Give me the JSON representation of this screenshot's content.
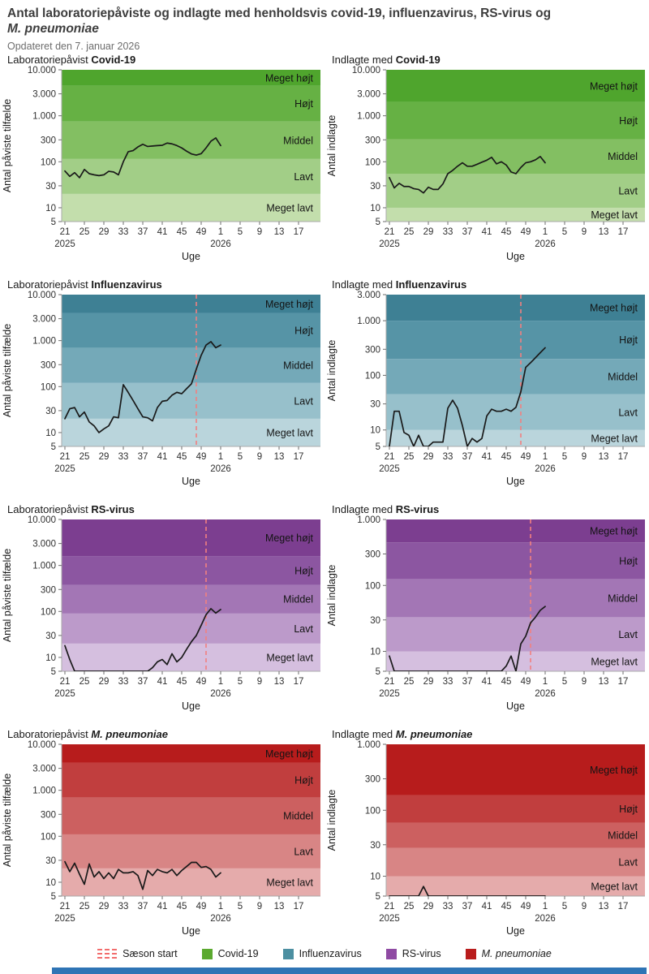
{
  "page": {
    "title_main": "Antal laboratoriepåviste og indlagte med henholdsvis covid-19, influenzavirus, RS-virus og",
    "title_italic": "M. pneumoniae",
    "subtitle": "Opdateret den 7. januar 2026"
  },
  "colors": {
    "line": "#1a1a1a",
    "season_dash": "#F28080",
    "axis": "#ababab",
    "footer_bar": "#2E74B5",
    "palettes": {
      "green": [
        "#4FA52D",
        "#66B144",
        "#83BF62",
        "#A2CE87",
        "#C3DEAC"
      ],
      "teal": [
        "#3E8094",
        "#5694A6",
        "#74A9B8",
        "#97C0CB",
        "#BAD5DC"
      ],
      "purple": [
        "#7C3E90",
        "#8C56A1",
        "#A376B5",
        "#BC9ACA",
        "#D5BFDF"
      ],
      "red": [
        "#B71C1C",
        "#C13E3E",
        "#CC6060",
        "#D88585",
        "#E5ABAB"
      ]
    }
  },
  "levels_top_to_bottom": [
    "Meget højt",
    "Højt",
    "Middel",
    "Lavt",
    "Meget lavt"
  ],
  "x_axis": {
    "label": "Uge",
    "weeks": [
      21,
      22,
      23,
      24,
      25,
      26,
      27,
      28,
      29,
      30,
      31,
      32,
      33,
      34,
      35,
      36,
      37,
      38,
      39,
      40,
      41,
      42,
      43,
      44,
      45,
      46,
      47,
      48,
      49,
      50,
      51,
      52,
      1
    ],
    "tick_weeks": [
      21,
      25,
      29,
      33,
      37,
      41,
      45,
      49,
      1,
      5,
      9,
      13,
      17
    ],
    "year_labels": [
      {
        "week": 21,
        "text": "2025"
      },
      {
        "week": 1,
        "text": "2026"
      }
    ]
  },
  "legend": {
    "season": {
      "label": "Sæson start",
      "color": "#F26D6D"
    },
    "items": [
      {
        "label": "Covid-19",
        "color": "#5BA92F",
        "italic": false
      },
      {
        "label": "Influenzavirus",
        "color": "#4C8FA1",
        "italic": false
      },
      {
        "label": "RS-virus",
        "color": "#8F4AA3",
        "italic": false
      },
      {
        "label": "M. pneumoniae",
        "color": "#B91C1C",
        "italic": true
      }
    ]
  },
  "chart_data": {
    "type": "line",
    "note": "8 log-scale weekly surveillance charts; values under charts[].values; background intensity bands between thresholds"
  },
  "charts": [
    {
      "title_prefix": "Laboratoriepåvist ",
      "title_pathogen": "Covid-19",
      "title_italic": false,
      "ylabel": "Antal påviste tilfælde",
      "palette": "green",
      "ymin": 5,
      "ymax": 10000,
      "y_tick_values": [
        10000,
        3000,
        1000,
        300,
        100,
        30,
        10,
        5
      ],
      "y_tick_labels": [
        "10.000",
        "3.000",
        "1.000",
        "300",
        "100",
        "30",
        "10",
        "5"
      ],
      "thresholds": [
        20,
        115,
        750,
        4500
      ],
      "season_start_week": null,
      "values": [
        63,
        48,
        58,
        45,
        68,
        55,
        52,
        50,
        52,
        62,
        60,
        52,
        100,
        165,
        175,
        210,
        240,
        215,
        220,
        225,
        228,
        255,
        245,
        225,
        200,
        170,
        148,
        140,
        150,
        200,
        280,
        330,
        225
      ]
    },
    {
      "title_prefix": "Indlagte med ",
      "title_pathogen": "Covid-19",
      "title_italic": false,
      "ylabel": "Antal indlagte",
      "palette": "green",
      "ymin": 5,
      "ymax": 10000,
      "y_tick_values": [
        10000,
        3000,
        1000,
        300,
        100,
        30,
        10,
        5
      ],
      "y_tick_labels": [
        "10.000",
        "3.000",
        "1.000",
        "300",
        "100",
        "30",
        "10",
        "5"
      ],
      "thresholds": [
        10,
        55,
        310,
        2000
      ],
      "season_start_week": null,
      "values": [
        45,
        27,
        34,
        29,
        29,
        26,
        25,
        21,
        28,
        25,
        25,
        33,
        55,
        65,
        80,
        95,
        80,
        80,
        88,
        98,
        108,
        125,
        90,
        100,
        85,
        60,
        55,
        75,
        95,
        100,
        110,
        130,
        95
      ]
    },
    {
      "title_prefix": "Laboratoriepåvist ",
      "title_pathogen": "Influenzavirus",
      "title_italic": false,
      "ylabel": "Antal påviste tilfælde",
      "palette": "teal",
      "ymin": 5,
      "ymax": 10000,
      "y_tick_values": [
        10000,
        3000,
        1000,
        300,
        100,
        30,
        10,
        5
      ],
      "y_tick_labels": [
        "10.000",
        "3.000",
        "1.000",
        "300",
        "100",
        "30",
        "10",
        "5"
      ],
      "thresholds": [
        20,
        120,
        700,
        4000
      ],
      "season_start_week": 48,
      "values": [
        20,
        33,
        35,
        22,
        28,
        17,
        14,
        10,
        12,
        14,
        22,
        21,
        110,
        75,
        50,
        33,
        22,
        21,
        18,
        35,
        48,
        50,
        65,
        75,
        70,
        90,
        115,
        240,
        480,
        800,
        950,
        700,
        800
      ]
    },
    {
      "title_prefix": "Indlagte med ",
      "title_pathogen": "Influenzavirus",
      "title_italic": false,
      "ylabel": "Antal indlagte",
      "palette": "teal",
      "ymin": 5,
      "ymax": 3000,
      "y_tick_values": [
        3000,
        1000,
        300,
        100,
        30,
        10,
        5
      ],
      "y_tick_labels": [
        "3.000",
        "1.000",
        "300",
        "100",
        "30",
        "10",
        "5"
      ],
      "thresholds": [
        10,
        45,
        200,
        1000
      ],
      "season_start_week": 48,
      "values": [
        5,
        22,
        22,
        9,
        8,
        5,
        8,
        5,
        5,
        6,
        6,
        6,
        25,
        35,
        25,
        12,
        5,
        7,
        6,
        7,
        18,
        24,
        22,
        22,
        24,
        22,
        26,
        50,
        140,
        170,
        210,
        260,
        320
      ]
    },
    {
      "title_prefix": "Laboratoriepåvist ",
      "title_pathogen": "RS-virus",
      "title_italic": false,
      "ylabel": "Antal påviste tilfælde",
      "palette": "purple",
      "ymin": 5,
      "ymax": 10000,
      "y_tick_values": [
        10000,
        3000,
        1000,
        300,
        100,
        30,
        10,
        5
      ],
      "y_tick_labels": [
        "10.000",
        "3.000",
        "1.000",
        "300",
        "100",
        "30",
        "10",
        "5"
      ],
      "thresholds": [
        20,
        90,
        380,
        1600
      ],
      "season_start_week": 50,
      "values": [
        18,
        9,
        5,
        5,
        5,
        5,
        5,
        5,
        5,
        5,
        5,
        5,
        5,
        5,
        5,
        5,
        5,
        5,
        6,
        8,
        9,
        7,
        12,
        8,
        10,
        15,
        22,
        30,
        50,
        85,
        115,
        92,
        110
      ]
    },
    {
      "title_prefix": "Indlagte med ",
      "title_pathogen": "RS-virus",
      "title_italic": false,
      "ylabel": "Antal indlagte",
      "palette": "purple",
      "ymin": 5,
      "ymax": 1000,
      "y_tick_values": [
        1000,
        300,
        100,
        30,
        10,
        5
      ],
      "y_tick_labels": [
        "1.000",
        "300",
        "100",
        "30",
        "10",
        "5"
      ],
      "thresholds": [
        10,
        33,
        125,
        450
      ],
      "season_start_week": 50,
      "values": [
        8.5,
        5,
        5,
        5,
        5,
        5,
        5,
        5,
        5,
        5,
        5,
        5,
        5,
        5,
        5,
        5,
        5,
        5,
        5,
        5,
        5,
        5,
        5,
        5,
        6,
        8.5,
        5,
        13,
        17,
        27,
        33,
        42,
        48
      ]
    },
    {
      "title_prefix": "Laboratoriepåvist ",
      "title_pathogen": "M. pneumoniae",
      "title_italic": true,
      "ylabel": "Antal påviste tilfælde",
      "palette": "red",
      "ymin": 5,
      "ymax": 10000,
      "y_tick_values": [
        10000,
        3000,
        1000,
        300,
        100,
        30,
        10,
        5
      ],
      "y_tick_labels": [
        "10.000",
        "3.000",
        "1.000",
        "300",
        "100",
        "30",
        "10",
        "5"
      ],
      "thresholds": [
        20,
        110,
        700,
        4000
      ],
      "season_start_week": null,
      "values": [
        28,
        17,
        26,
        15,
        9,
        25,
        13,
        17,
        12,
        16,
        12,
        19,
        16,
        16,
        17,
        14,
        7,
        18,
        14,
        19,
        17,
        16,
        19,
        14,
        18,
        22,
        27,
        27,
        21,
        22,
        19,
        13,
        16
      ]
    },
    {
      "title_prefix": "Indlagte med ",
      "title_pathogen": "M. pneumoniae",
      "title_italic": true,
      "ylabel": "Antal indlagte",
      "palette": "red",
      "ymin": 5,
      "ymax": 1000,
      "y_tick_values": [
        1000,
        300,
        100,
        30,
        10,
        5
      ],
      "y_tick_labels": [
        "1.000",
        "300",
        "100",
        "30",
        "10",
        "5"
      ],
      "thresholds": [
        10,
        27,
        65,
        170
      ],
      "season_start_week": null,
      "values": [
        5,
        5,
        5,
        5,
        5,
        5,
        5,
        7,
        5,
        5,
        5,
        5,
        5,
        5,
        5,
        5,
        5,
        5,
        5,
        5,
        5,
        5,
        5,
        5,
        5,
        5,
        5,
        5,
        5,
        5,
        5,
        5,
        5
      ]
    }
  ]
}
